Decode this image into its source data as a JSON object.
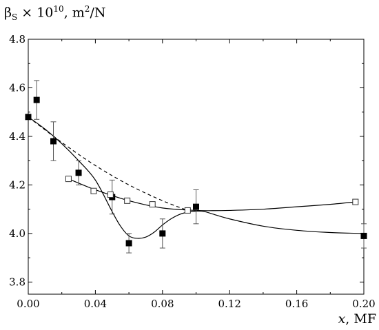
{
  "chart_data": {
    "type": "scatter",
    "ylabel": {
      "symbol": "β",
      "subscript": "S",
      "times": " × 10",
      "exponent": "10",
      "unit": ", m",
      "unit_exp": "2",
      "unit_tail": "/N"
    },
    "xlabel": {
      "symbol": "x",
      "tail": ", MF"
    },
    "xlim": [
      0.0,
      0.2
    ],
    "ylim": [
      3.75,
      4.8
    ],
    "xticks": [
      "0.00",
      "0.04",
      "0.08",
      "0.12",
      "0.16",
      "0.20"
    ],
    "xtick_values": [
      0.0,
      0.04,
      0.08,
      0.12,
      0.16,
      0.2
    ],
    "yticks": [
      "3.8",
      "4.0",
      "4.2",
      "4.4",
      "4.6",
      "4.8"
    ],
    "ytick_values": [
      3.8,
      4.0,
      4.2,
      4.4,
      4.6,
      4.8
    ],
    "grid": false,
    "series": [
      {
        "marker": "filled-square",
        "x": [
          0.0,
          0.005,
          0.015,
          0.03,
          0.05,
          0.06,
          0.08,
          0.1,
          0.2
        ],
        "y": [
          4.48,
          4.55,
          4.38,
          4.25,
          4.15,
          3.96,
          4.0,
          4.11,
          3.99
        ],
        "yerr": [
          0.0,
          0.08,
          0.08,
          0.05,
          0.07,
          0.04,
          0.06,
          0.07,
          0.05
        ]
      },
      {
        "marker": "open-square",
        "x": [
          0.024,
          0.039,
          0.049,
          0.059,
          0.074,
          0.095,
          0.195
        ],
        "y": [
          4.225,
          4.175,
          4.16,
          4.135,
          4.12,
          4.095,
          4.13
        ]
      }
    ],
    "curves": [
      {
        "style": "solid",
        "x": [
          0.0,
          0.01,
          0.02,
          0.03,
          0.04,
          0.05,
          0.055,
          0.06,
          0.065,
          0.07,
          0.075,
          0.08,
          0.085,
          0.09,
          0.095,
          0.1,
          0.105,
          0.11,
          0.12,
          0.14,
          0.16,
          0.18,
          0.2
        ],
        "y": [
          4.48,
          4.43,
          4.37,
          4.3,
          4.22,
          4.09,
          4.03,
          3.99,
          3.98,
          3.985,
          4.005,
          4.035,
          4.06,
          4.078,
          4.088,
          4.092,
          4.09,
          4.08,
          4.06,
          4.03,
          4.013,
          4.004,
          4.0
        ]
      },
      {
        "style": "solid",
        "x": [
          0.024,
          0.04,
          0.06,
          0.08,
          0.1,
          0.11,
          0.12,
          0.14,
          0.16,
          0.18,
          0.195
        ],
        "y": [
          4.225,
          4.18,
          4.135,
          4.105,
          4.095,
          4.094,
          4.095,
          4.1,
          4.11,
          4.12,
          4.13
        ]
      },
      {
        "style": "dashed",
        "x": [
          0.0,
          0.02,
          0.04,
          0.06,
          0.08,
          0.095
        ],
        "y": [
          4.48,
          4.375,
          4.28,
          4.2,
          4.135,
          4.095
        ]
      }
    ]
  }
}
